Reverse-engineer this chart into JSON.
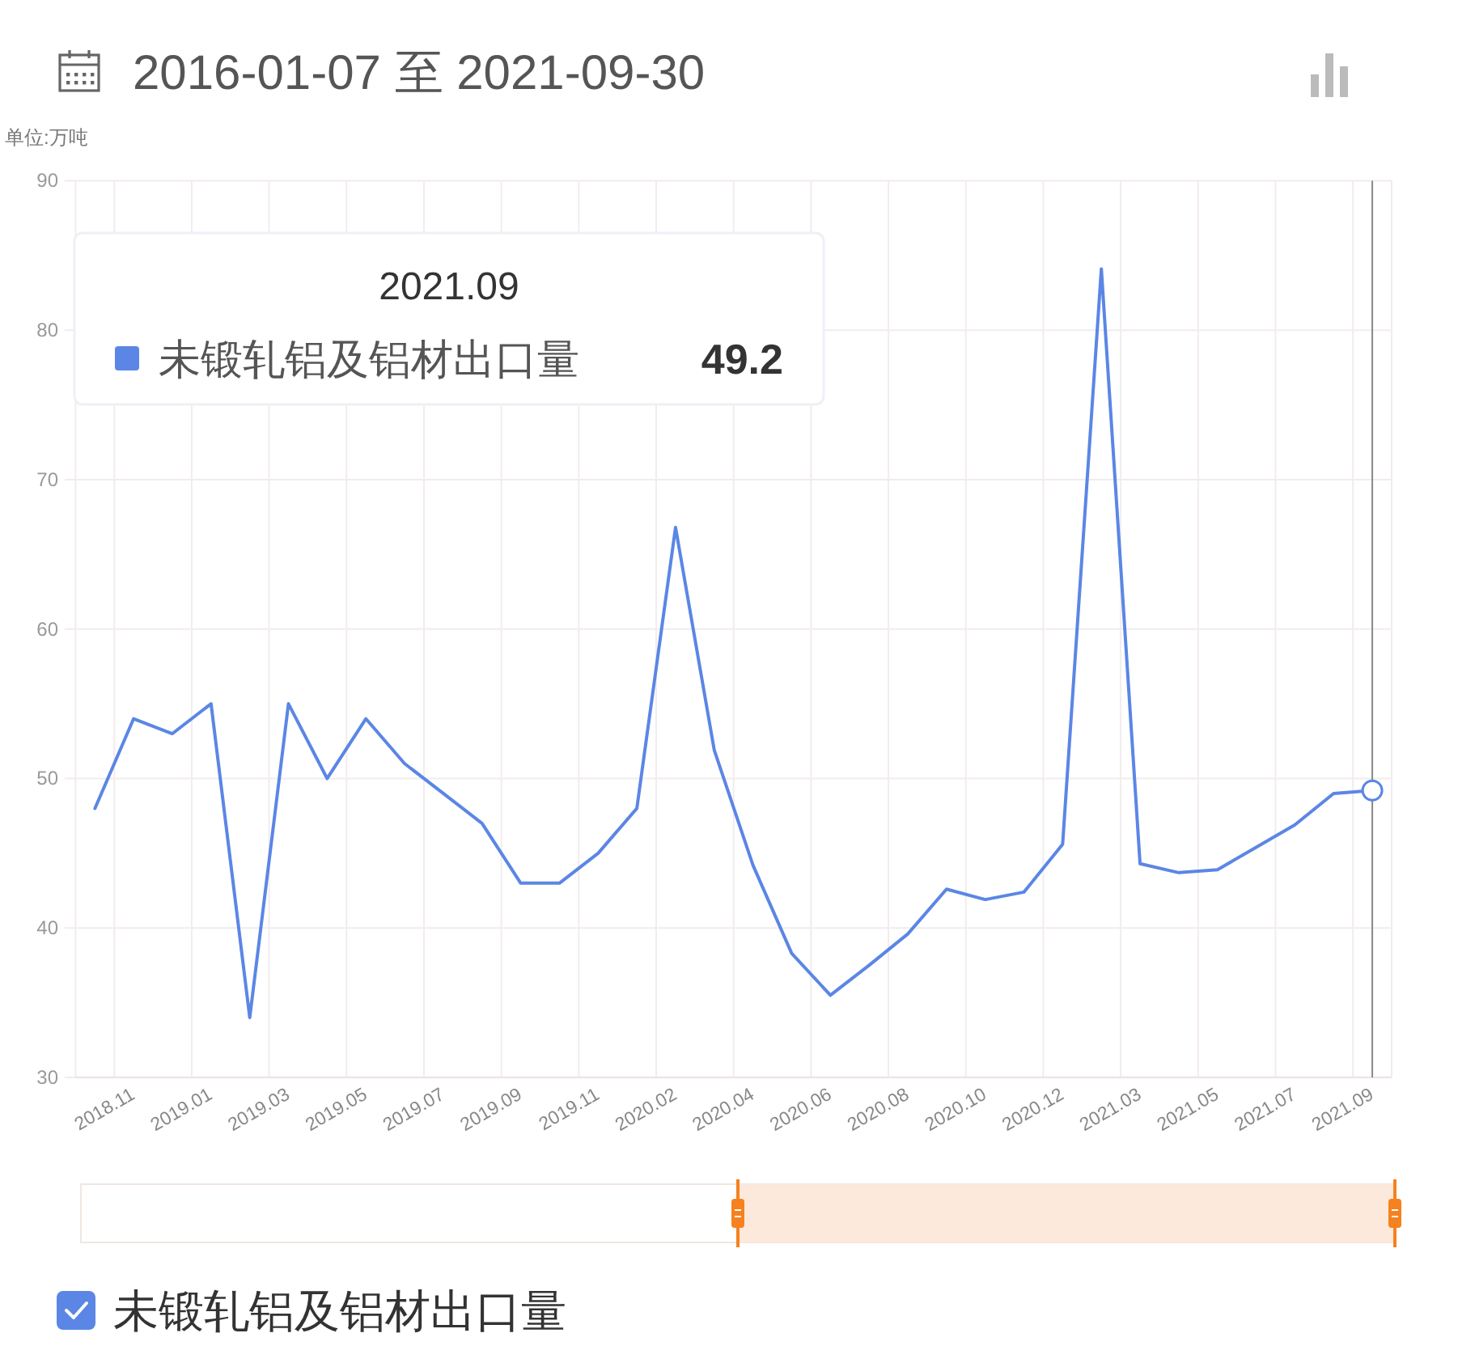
{
  "chart_data": {
    "type": "line",
    "title": "2016-01-07 至 2021-09-30",
    "ylabel": "单位:万吨",
    "categories": [
      null,
      "2018.11",
      null,
      "2019.01",
      null,
      "2019.03",
      null,
      "2019.05",
      null,
      "2019.07",
      null,
      "2019.09",
      null,
      "2019.11",
      null,
      "2020.02",
      null,
      "2020.04",
      null,
      "2020.06",
      null,
      "2020.08",
      null,
      "2020.10",
      null,
      "2020.12",
      null,
      "2021.03",
      null,
      "2021.05",
      null,
      "2021.07",
      null,
      "2021.09"
    ],
    "series": [
      {
        "name": "未锻轧铝及铝材出口量",
        "color": "#5b86e5",
        "values": [
          48,
          54,
          53,
          55,
          34,
          55,
          50,
          54,
          51,
          49,
          47,
          43,
          43,
          45,
          48,
          66.8,
          51.9,
          44.2,
          38.3,
          35.5,
          37.5,
          39.6,
          42.6,
          41.9,
          42.4,
          45.6,
          84.1,
          44.3,
          43.7,
          43.9,
          45.4,
          46.9,
          49.0,
          49.2
        ]
      }
    ],
    "ylim": [
      30,
      90
    ],
    "yticks": [
      30,
      40,
      50,
      60,
      70,
      80,
      90
    ],
    "grid": true,
    "legend": "bottom left",
    "line_style": "solid",
    "ref_lines": [
      {
        "axis": "x",
        "value": "2021.09",
        "color": "#888888"
      }
    ],
    "annotations": [
      "未锻轧铝及铝材出口量 **49.2**"
    ]
  }
}
